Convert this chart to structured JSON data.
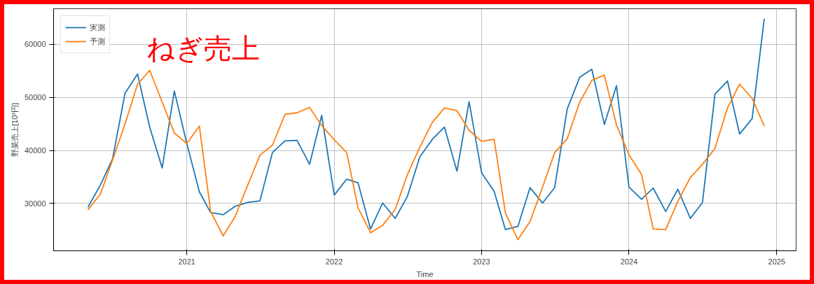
{
  "chart_data": {
    "type": "line",
    "title": "ねぎ売上",
    "xlabel": "Time",
    "ylabel": "野菜売上[10³円]",
    "x": [
      "2020-05",
      "2020-06",
      "2020-07",
      "2020-08",
      "2020-09",
      "2020-10",
      "2020-11",
      "2020-12",
      "2021-01",
      "2021-02",
      "2021-03",
      "2021-04",
      "2021-05",
      "2021-06",
      "2021-07",
      "2021-08",
      "2021-09",
      "2021-10",
      "2021-11",
      "2021-12",
      "2022-01",
      "2022-02",
      "2022-03",
      "2022-04",
      "2022-05",
      "2022-06",
      "2022-07",
      "2022-08",
      "2022-09",
      "2022-10",
      "2022-11",
      "2022-12",
      "2023-01",
      "2023-02",
      "2023-03",
      "2023-04",
      "2023-05",
      "2023-06",
      "2023-07",
      "2023-08",
      "2023-09",
      "2023-10",
      "2023-11",
      "2023-12",
      "2024-01",
      "2024-02",
      "2024-03",
      "2024-04",
      "2024-05",
      "2024-06",
      "2024-07",
      "2024-08",
      "2024-09",
      "2024-10",
      "2024-11",
      "2024-12"
    ],
    "series": [
      {
        "name": "実測",
        "color": "#1f77b4",
        "values": [
          29300,
          33500,
          38400,
          50800,
          54400,
          44400,
          36700,
          51200,
          41300,
          32200,
          28300,
          27900,
          29500,
          30200,
          30500,
          39600,
          41800,
          41900,
          37400,
          46600,
          31600,
          34600,
          33900,
          25200,
          30100,
          27200,
          31300,
          38800,
          42100,
          44400,
          36100,
          49200,
          35800,
          32300,
          25100,
          25700,
          33000,
          30100,
          33000,
          47800,
          53800,
          55300,
          44900,
          52200,
          33100,
          30800,
          32900,
          28500,
          32700,
          27200,
          30200,
          50600,
          53100,
          43100,
          46000,
          64800
        ]
      },
      {
        "name": "予測",
        "color": "#ff7f0e",
        "values": [
          28800,
          31800,
          38200,
          45000,
          52500,
          55100,
          49100,
          43300,
          41300,
          44600,
          28500,
          23900,
          27600,
          33500,
          39100,
          41000,
          46800,
          47100,
          48100,
          44700,
          42000,
          39600,
          29200,
          24500,
          25900,
          28900,
          35400,
          40600,
          45300,
          48000,
          47500,
          43800,
          41700,
          42100,
          28200,
          23200,
          26600,
          33100,
          39600,
          42200,
          49100,
          53200,
          54200,
          44800,
          39200,
          35500,
          25200,
          25100,
          30400,
          34900,
          37400,
          40400,
          48000,
          52500,
          49800,
          44600
        ]
      }
    ],
    "xlim": [
      "2020-02-06",
      "2025-02-18"
    ],
    "xticks": [
      {
        "value": "2021-01",
        "label": "2021"
      },
      {
        "value": "2022-01",
        "label": "2022"
      },
      {
        "value": "2023-01",
        "label": "2023"
      },
      {
        "value": "2024-01",
        "label": "2024"
      },
      {
        "value": "2025-01",
        "label": "2025"
      }
    ],
    "ylim": [
      21100,
      66700
    ],
    "yticks": [
      30000,
      40000,
      50000,
      60000
    ],
    "grid": true,
    "legend": "top left",
    "line_style": "solid"
  }
}
